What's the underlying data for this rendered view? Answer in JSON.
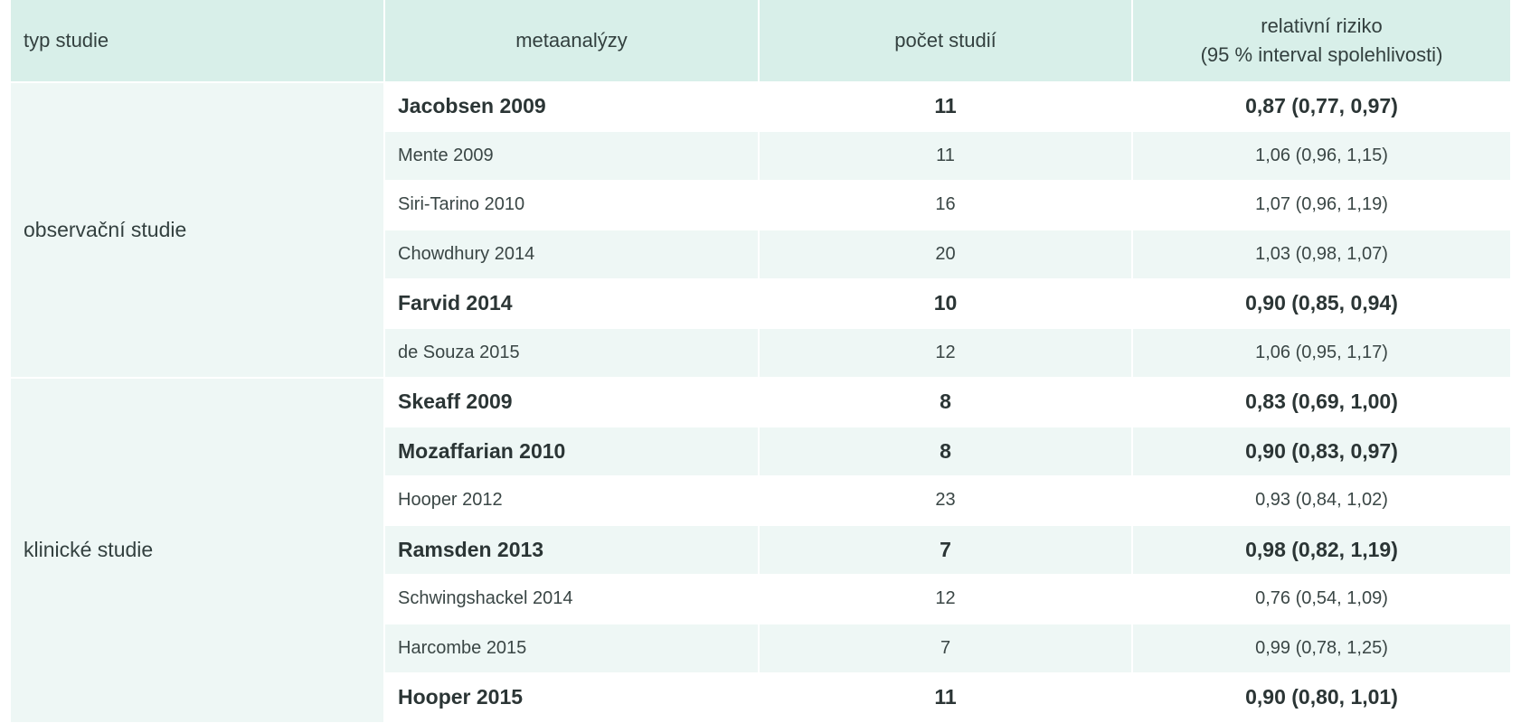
{
  "table": {
    "headers": {
      "type": "typ studie",
      "meta": "metaanalýzy",
      "count": "počet studií",
      "rr_line1": "relativní riziko",
      "rr_line2": "(95 % interval spolehlivosti)"
    },
    "groups": [
      {
        "label": "observační studie",
        "rows": [
          {
            "name": "Jacobsen 2009",
            "count": "11",
            "rr": "0,87 (0,77, 0,97)",
            "bold": true
          },
          {
            "name": "Mente 2009",
            "count": "11",
            "rr": "1,06 (0,96, 1,15)",
            "bold": false
          },
          {
            "name": "Siri-Tarino 2010",
            "count": "16",
            "rr": "1,07 (0,96, 1,19)",
            "bold": false
          },
          {
            "name": "Chowdhury 2014",
            "count": "20",
            "rr": "1,03 (0,98, 1,07)",
            "bold": false
          },
          {
            "name": "Farvid 2014",
            "count": "10",
            "rr": "0,90 (0,85, 0,94)",
            "bold": true
          },
          {
            "name": "de Souza 2015",
            "count": "12",
            "rr": "1,06 (0,95, 1,17)",
            "bold": false
          }
        ]
      },
      {
        "label": "klinické studie",
        "rows": [
          {
            "name": "Skeaff 2009",
            "count": "8",
            "rr": "0,83 (0,69, 1,00)",
            "bold": true
          },
          {
            "name": "Mozaffarian 2010",
            "count": "8",
            "rr": "0,90 (0,83, 0,97)",
            "bold": true
          },
          {
            "name": "Hooper 2012",
            "count": "23",
            "rr": "0,93 (0,84, 1,02)",
            "bold": false
          },
          {
            "name": "Ramsden 2013",
            "count": "7",
            "rr": "0,98 (0,82, 1,19)",
            "bold": true
          },
          {
            "name": "Schwingshackel 2014",
            "count": "12",
            "rr": "0,76 (0,54, 1,09)",
            "bold": false
          },
          {
            "name": "Harcombe 2015",
            "count": "7",
            "rr": "0,99 (0,78, 1,25)",
            "bold": false
          },
          {
            "name": "Hooper 2015",
            "count": "11",
            "rr": "0,90 (0,80, 1,01)",
            "bold": true
          }
        ]
      }
    ]
  },
  "colors": {
    "header_bg": "#d8efe9",
    "row_alt_bg": "#eef7f5",
    "text": "#33403f"
  }
}
